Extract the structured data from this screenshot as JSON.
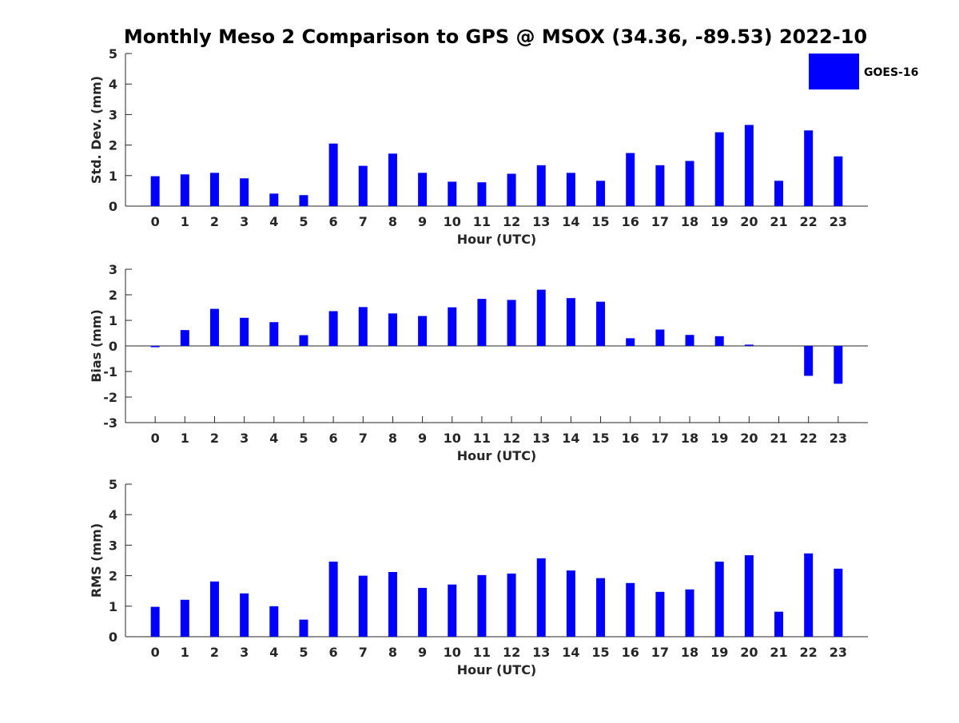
{
  "title": "Monthly Meso 2 Comparison to GPS @ MSOX (34.36, -89.53) 2022-10",
  "legend": {
    "label": "GOES-16",
    "color": "#0000ff",
    "location": "top-right"
  },
  "chart_data": [
    {
      "type": "bar",
      "ylabel": "Std. Dev. (mm)",
      "xlabel": "Hour (UTC)",
      "categories": [
        "0",
        "1",
        "2",
        "3",
        "4",
        "5",
        "6",
        "7",
        "8",
        "9",
        "10",
        "11",
        "12",
        "13",
        "14",
        "15",
        "16",
        "17",
        "18",
        "19",
        "20",
        "21",
        "22",
        "23"
      ],
      "ylim": [
        0,
        5
      ],
      "yticks": [
        0,
        1,
        2,
        3,
        4,
        5
      ],
      "grid": false,
      "series": [
        {
          "name": "GOES-16",
          "color": "#0000ff",
          "values": [
            0.98,
            1.04,
            1.09,
            0.91,
            0.41,
            0.36,
            2.05,
            1.32,
            1.72,
            1.09,
            0.8,
            0.78,
            1.06,
            1.34,
            1.09,
            0.83,
            1.74,
            1.34,
            1.48,
            2.42,
            2.66,
            0.83,
            2.48,
            1.63
          ]
        }
      ]
    },
    {
      "type": "bar",
      "ylabel": "Bias (mm)",
      "xlabel": "Hour (UTC)",
      "categories": [
        "0",
        "1",
        "2",
        "3",
        "4",
        "5",
        "6",
        "7",
        "8",
        "9",
        "10",
        "11",
        "12",
        "13",
        "14",
        "15",
        "16",
        "17",
        "18",
        "19",
        "20",
        "21",
        "22",
        "23"
      ],
      "ylim": [
        -3,
        3
      ],
      "yticks": [
        -3,
        -2,
        -1,
        0,
        1,
        2,
        3
      ],
      "grid": false,
      "series": [
        {
          "name": "GOES-16",
          "color": "#0000ff",
          "values": [
            -0.05,
            0.62,
            1.45,
            1.1,
            0.93,
            0.42,
            1.36,
            1.52,
            1.27,
            1.17,
            1.51,
            1.84,
            1.8,
            2.2,
            1.87,
            1.73,
            0.3,
            0.64,
            0.43,
            0.38,
            0.05,
            0.0,
            -1.17,
            -1.48
          ]
        }
      ]
    },
    {
      "type": "bar",
      "ylabel": "RMS (mm)",
      "xlabel": "Hour (UTC)",
      "categories": [
        "0",
        "1",
        "2",
        "3",
        "4",
        "5",
        "6",
        "7",
        "8",
        "9",
        "10",
        "11",
        "12",
        "13",
        "14",
        "15",
        "16",
        "17",
        "18",
        "19",
        "20",
        "21",
        "22",
        "23"
      ],
      "ylim": [
        0,
        5
      ],
      "yticks": [
        0,
        1,
        2,
        3,
        4,
        5
      ],
      "grid": false,
      "series": [
        {
          "name": "GOES-16",
          "color": "#0000ff",
          "values": [
            0.98,
            1.21,
            1.81,
            1.42,
            1.0,
            0.56,
            2.46,
            2.0,
            2.12,
            1.6,
            1.71,
            2.02,
            2.07,
            2.57,
            2.17,
            1.92,
            1.76,
            1.47,
            1.55,
            2.46,
            2.67,
            0.82,
            2.73,
            2.23
          ]
        }
      ]
    }
  ]
}
